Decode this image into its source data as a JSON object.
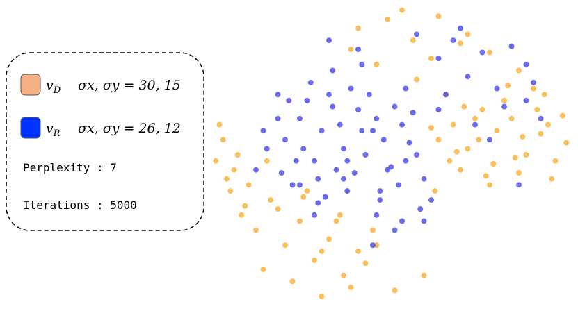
{
  "chart_data": {
    "type": "scatter",
    "xlim": [
      0,
      100
    ],
    "ylim": [
      0,
      100
    ],
    "legend": {
      "position": "left",
      "entries": [
        {
          "series": 0,
          "sub": "D",
          "params": "σx, σy = 30, 15"
        },
        {
          "series": 1,
          "sub": "R",
          "params": "σx, σy = 26, 12"
        }
      ],
      "notes": [
        "Perplexity : 7",
        "Iterations : 5000"
      ]
    },
    "series": [
      {
        "name": "v",
        "color": "#f7a928",
        "swatch": "#f4b183",
        "x": [
          62,
          66,
          70,
          74,
          78,
          82,
          86,
          90,
          94,
          97,
          64,
          68,
          72,
          76,
          80,
          84,
          88,
          92,
          96,
          61,
          65,
          69,
          73,
          77,
          81,
          85,
          89,
          93,
          60,
          67,
          75,
          83,
          91,
          8,
          12,
          16,
          20,
          24,
          28,
          32,
          36,
          40,
          44,
          10,
          14,
          18,
          22,
          26,
          30,
          34,
          38,
          42,
          6,
          15,
          25,
          35,
          45,
          3,
          5,
          2,
          7,
          4,
          9,
          1,
          40,
          48,
          55,
          62,
          70,
          38,
          45,
          52,
          60,
          68,
          76,
          84,
          56,
          50,
          58,
          30
        ],
        "values": [
          55,
          60,
          52,
          65,
          58,
          62,
          50,
          57,
          48,
          54,
          70,
          45,
          62,
          40,
          68,
          44,
          72,
          60,
          63,
          38,
          48,
          66,
          55,
          47,
          73,
          56,
          65,
          42,
          59,
          51,
          43,
          49,
          70,
          30,
          25,
          35,
          20,
          28,
          15,
          22,
          10,
          18,
          25,
          40,
          12,
          32,
          8,
          38,
          18,
          28,
          6,
          14,
          45,
          48,
          36,
          30,
          20,
          55,
          38,
          60,
          50,
          42,
          33,
          48,
          92,
          95,
          88,
          96,
          90,
          85,
          80,
          98,
          82,
          87,
          84,
          78,
          75,
          5,
          10,
          3
        ]
      },
      {
        "name": "v",
        "color": "#3b3be3",
        "swatch": "#0033ff",
        "x": [
          20,
          24,
          28,
          32,
          36,
          40,
          44,
          48,
          52,
          56,
          22,
          26,
          30,
          34,
          38,
          42,
          46,
          50,
          54,
          58,
          18,
          23,
          27,
          31,
          35,
          39,
          43,
          47,
          51,
          55,
          25,
          29,
          33,
          37,
          41,
          45,
          49,
          53,
          21,
          29,
          37,
          45,
          53,
          15,
          19,
          33,
          41,
          57,
          62,
          66,
          70,
          74,
          78,
          82,
          86,
          64,
          72,
          80,
          88,
          68,
          76,
          84,
          60,
          58,
          50,
          44,
          36,
          28,
          46,
          52,
          40,
          32,
          24,
          18,
          14,
          12,
          90,
          86,
          62,
          56
        ],
        "values": [
          55,
          62,
          48,
          70,
          52,
          65,
          58,
          45,
          60,
          50,
          40,
          68,
          58,
          45,
          72,
          50,
          38,
          66,
          54,
          42,
          62,
          48,
          74,
          36,
          60,
          44,
          70,
          55,
          40,
          64,
          52,
          42,
          66,
          48,
          58,
          62,
          46,
          72,
          68,
          34,
          38,
          30,
          48,
          52,
          44,
          78,
          80,
          32,
          82,
          88,
          76,
          84,
          72,
          86,
          80,
          70,
          60,
          66,
          74,
          92,
          55,
          40,
          35,
          28,
          25,
          20,
          42,
          30,
          35,
          28,
          85,
          88,
          40,
          70,
          58,
          45,
          62,
          68,
          65,
          90
        ]
      }
    ]
  }
}
